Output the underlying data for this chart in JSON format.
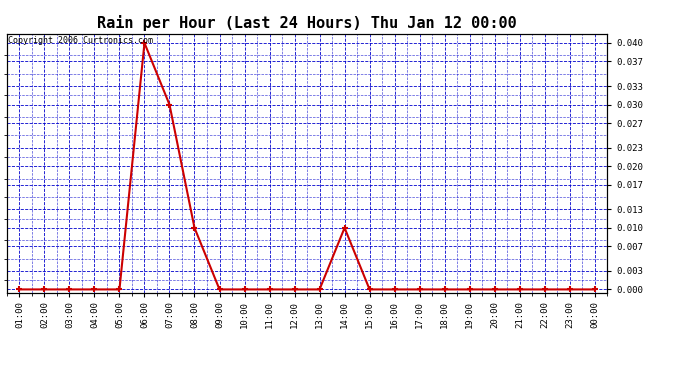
{
  "title": "Rain per Hour (Last 24 Hours) Thu Jan 12 00:00",
  "copyright": "Copyright 2006 Curtronics.com",
  "x_labels": [
    "01:00",
    "02:00",
    "03:00",
    "04:00",
    "05:00",
    "06:00",
    "07:00",
    "08:00",
    "09:00",
    "10:00",
    "11:00",
    "12:00",
    "13:00",
    "14:00",
    "15:00",
    "16:00",
    "17:00",
    "18:00",
    "19:00",
    "20:00",
    "21:00",
    "22:00",
    "23:00",
    "00:00"
  ],
  "y_values": [
    0.0,
    0.0,
    0.0,
    0.0,
    0.0,
    0.04,
    0.03,
    0.01,
    0.0,
    0.0,
    0.0,
    0.0,
    0.0,
    0.01,
    0.0,
    0.0,
    0.0,
    0.0,
    0.0,
    0.0,
    0.0,
    0.0,
    0.0,
    0.0
  ],
  "y_ticks": [
    0.0,
    0.003,
    0.007,
    0.01,
    0.013,
    0.017,
    0.02,
    0.023,
    0.027,
    0.03,
    0.033,
    0.037,
    0.04
  ],
  "line_color": "#cc0000",
  "marker_color": "#cc0000",
  "grid_color": "#0000cc",
  "background_color": "#ffffff",
  "title_fontsize": 11,
  "ylim": [
    -0.0005,
    0.0415
  ]
}
